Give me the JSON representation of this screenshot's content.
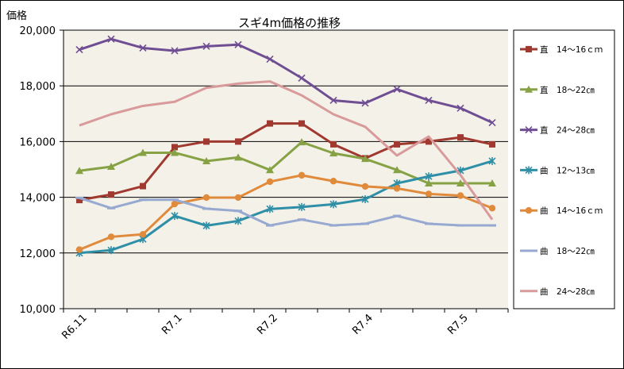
{
  "chart_data": {
    "type": "line",
    "title": "スギ4m価格の推移",
    "ylabel": "価格",
    "xlabel": "",
    "ylim": [
      10000,
      20000
    ],
    "yticks": [
      10000,
      12000,
      14000,
      16000,
      18000,
      20000
    ],
    "ytick_labels": [
      "10,000",
      "12,000",
      "14,000",
      "16,000",
      "18,000",
      "20,000"
    ],
    "grid": true,
    "legend_position": "right",
    "x_count": 14,
    "x_tick_labels": [
      {
        "index": 0,
        "label": "R6.11"
      },
      {
        "index": 3,
        "label": "R7.1"
      },
      {
        "index": 6,
        "label": "R7.2"
      },
      {
        "index": 9,
        "label": "R7.4"
      },
      {
        "index": 12,
        "label": "R7.5"
      }
    ],
    "series": [
      {
        "name": "直　14～16ｃｍ",
        "color": "#A0392F",
        "marker": "square",
        "values": [
          13900,
          14100,
          14400,
          15800,
          16000,
          16000,
          16650,
          16650,
          15900,
          15400,
          15900,
          16000,
          16150,
          15900
        ]
      },
      {
        "name": "直　18～22㎝",
        "color": "#86A244",
        "marker": "triangle",
        "values": [
          14950,
          15100,
          15600,
          15600,
          15300,
          15430,
          14980,
          15980,
          15580,
          15380,
          14980,
          14500,
          14500,
          14500
        ]
      },
      {
        "name": "直　24～28㎝",
        "color": "#6F4E93",
        "marker": "x",
        "values": [
          19300,
          19680,
          19360,
          19260,
          19420,
          19480,
          18960,
          18280,
          17480,
          17380,
          17880,
          17480,
          17200,
          16680
        ]
      },
      {
        "name": "曲　12～13㎝",
        "color": "#2E8FA6",
        "marker": "star",
        "values": [
          12000,
          12100,
          12500,
          13330,
          12980,
          13150,
          13580,
          13650,
          13750,
          13930,
          14500,
          14750,
          14960,
          15300
        ]
      },
      {
        "name": "曲　14～16ｃｍ",
        "color": "#E08A3C",
        "marker": "circle",
        "values": [
          12120,
          12580,
          12670,
          13760,
          13990,
          13990,
          14560,
          14790,
          14580,
          14390,
          14320,
          14120,
          14060,
          13610
        ]
      },
      {
        "name": "曲　18～22㎝",
        "color": "#97A9D0",
        "marker": "dash",
        "values": [
          13980,
          13610,
          13910,
          13910,
          13590,
          13510,
          12990,
          13200,
          12990,
          13050,
          13330,
          13050,
          12990,
          12990
        ]
      },
      {
        "name": "曲　24～28㎝",
        "color": "#D89A9A",
        "marker": "none",
        "values": [
          16580,
          16980,
          17280,
          17430,
          17930,
          18080,
          18160,
          17660,
          16980,
          16530,
          15500,
          16180,
          14800,
          13200
        ]
      }
    ]
  }
}
